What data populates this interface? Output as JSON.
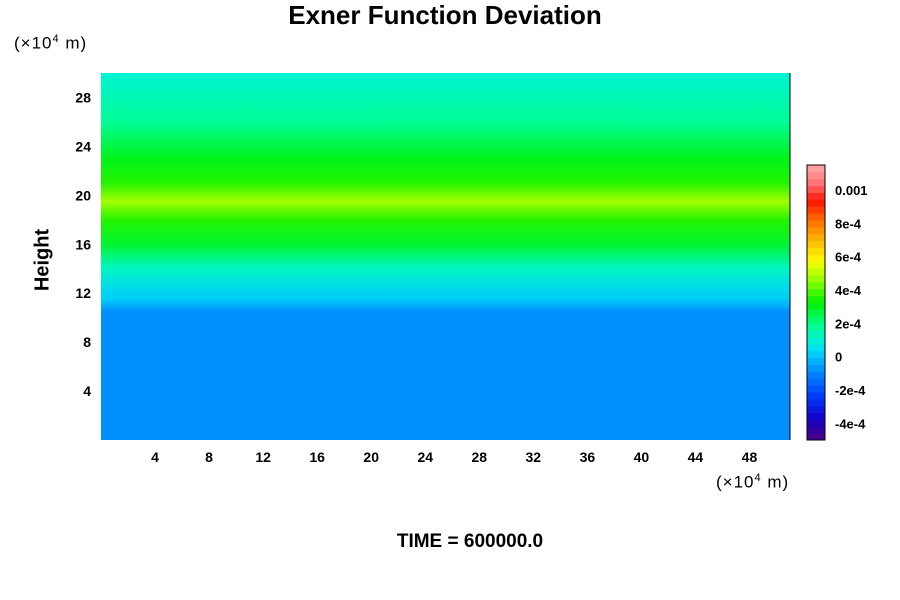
{
  "chart_data": {
    "type": "heatmap",
    "title": "Exner Function Deviation",
    "ylabel": "Height",
    "xlabel": "",
    "x_unit_prefix": "(×10",
    "unit_exponent": "4",
    "unit_suffix": " m)",
    "xlim": [
      0,
      51
    ],
    "ylim": [
      0,
      30
    ],
    "x_ticks": [
      4,
      8,
      12,
      16,
      20,
      24,
      28,
      32,
      36,
      40,
      44,
      48
    ],
    "y_ticks": [
      4,
      8,
      12,
      16,
      20,
      24,
      28
    ],
    "colorbar": {
      "min": -0.0005,
      "max": 0.00115,
      "tick_values": [
        -0.0004,
        -0.0002,
        0,
        0.0002,
        0.0004,
        0.0006,
        0.0008,
        0.001
      ],
      "tick_labels": [
        "-4e-4",
        "-2e-4",
        "0",
        "2e-4",
        "4e-4",
        "6e-4",
        "8e-4",
        "0.001"
      ]
    },
    "vertical_profile": [
      {
        "height": 0,
        "value": -8e-05
      },
      {
        "height": 10.5,
        "value": -8e-05
      },
      {
        "height": 11.5,
        "value": 2e-05
      },
      {
        "height": 12,
        "value": 3e-05
      },
      {
        "height": 14,
        "value": 0.00012
      },
      {
        "height": 16,
        "value": 0.00028
      },
      {
        "height": 18,
        "value": 0.00036
      },
      {
        "height": 19.5,
        "value": 0.00048
      },
      {
        "height": 21,
        "value": 0.00036
      },
      {
        "height": 23,
        "value": 0.0003
      },
      {
        "height": 26,
        "value": 0.00018
      },
      {
        "height": 30,
        "value": 0.0001
      }
    ]
  },
  "footer": {
    "time_label": "TIME = 600000.0"
  }
}
